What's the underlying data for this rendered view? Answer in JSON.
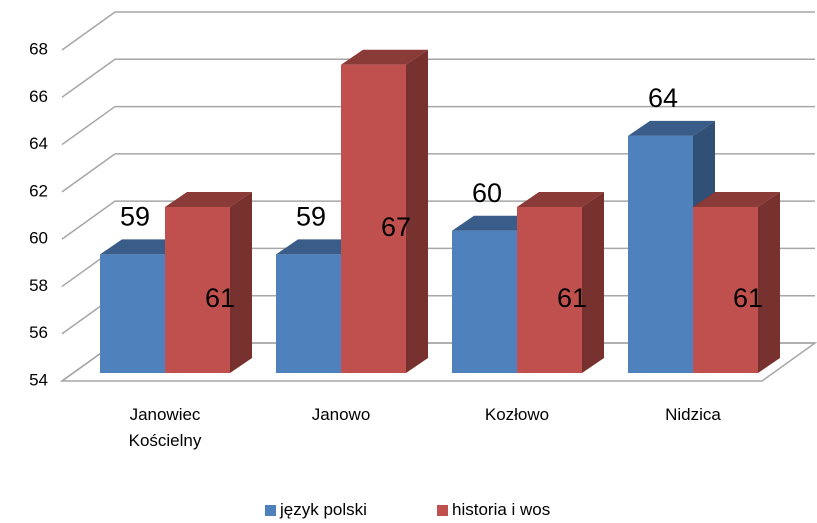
{
  "chart_data": {
    "type": "bar3d",
    "categories": [
      "Janowiec Kościelny",
      "Janowo",
      "Kozłowo",
      "Nidzica"
    ],
    "series": [
      {
        "name": "język polski",
        "color": "#4f81bd",
        "values": [
          59,
          59,
          60,
          64
        ]
      },
      {
        "name": "historia i wos",
        "color": "#c0504d",
        "values": [
          61,
          67,
          61,
          61
        ]
      }
    ],
    "ylim": [
      54,
      68
    ],
    "yticks": [
      54,
      56,
      58,
      60,
      62,
      64,
      66,
      68
    ],
    "grid": true,
    "legend": "bottom"
  }
}
